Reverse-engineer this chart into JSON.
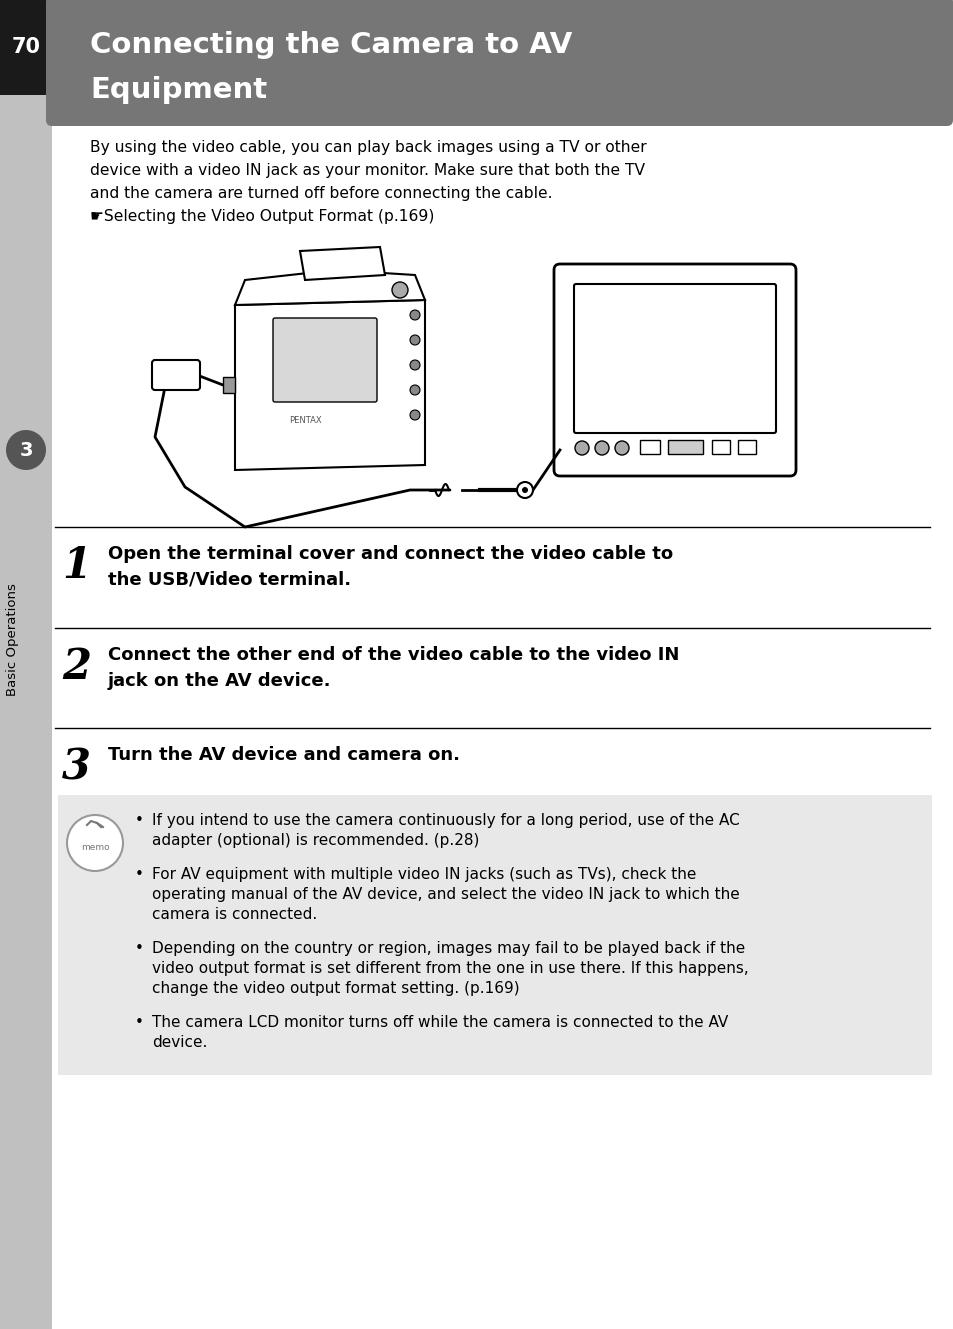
{
  "page_number": "70",
  "title_line1": "Connecting the Camera to AV",
  "title_line2": "Equipment",
  "title_bg_color": "#767676",
  "title_text_color": "#ffffff",
  "page_bg_color": "#ffffff",
  "sidebar_bg_color": "#c0c0c0",
  "sidebar_text": "Basic Operations",
  "sidebar_number": "3",
  "sidebar_num_bg": "#555555",
  "body_intro_lines": [
    "By using the video cable, you can play back images using a TV or other",
    "device with a video IN jack as your monitor. Make sure that both the TV",
    "and the camera are turned off before connecting the cable.",
    "☛Selecting the Video Output Format (p.169)"
  ],
  "step1_num": "1",
  "step1_line1": "Open the terminal cover and connect the video cable to",
  "step1_line2": "the USB/Video terminal.",
  "step2_num": "2",
  "step2_line1": "Connect the other end of the video cable to the video IN",
  "step2_line2": "jack on the AV device.",
  "step3_num": "3",
  "step3_line1": "Turn the AV device and camera on.",
  "memo_bg_color": "#e8e8e8",
  "memo_bullets": [
    [
      "If you intend to use the camera continuously for a long period, use of the AC",
      "adapter (optional) is recommended. (p.28)"
    ],
    [
      "For AV equipment with multiple video IN jacks (such as TVs), check the",
      "operating manual of the AV device, and select the video IN jack to which the",
      "camera is connected."
    ],
    [
      "Depending on the country or region, images may fail to be played back if the",
      "video output format is set different from the one in use there. If this happens,",
      "change the video output format setting. (p.169)"
    ],
    [
      "The camera LCD monitor turns off while the camera is connected to the AV",
      "device."
    ]
  ]
}
